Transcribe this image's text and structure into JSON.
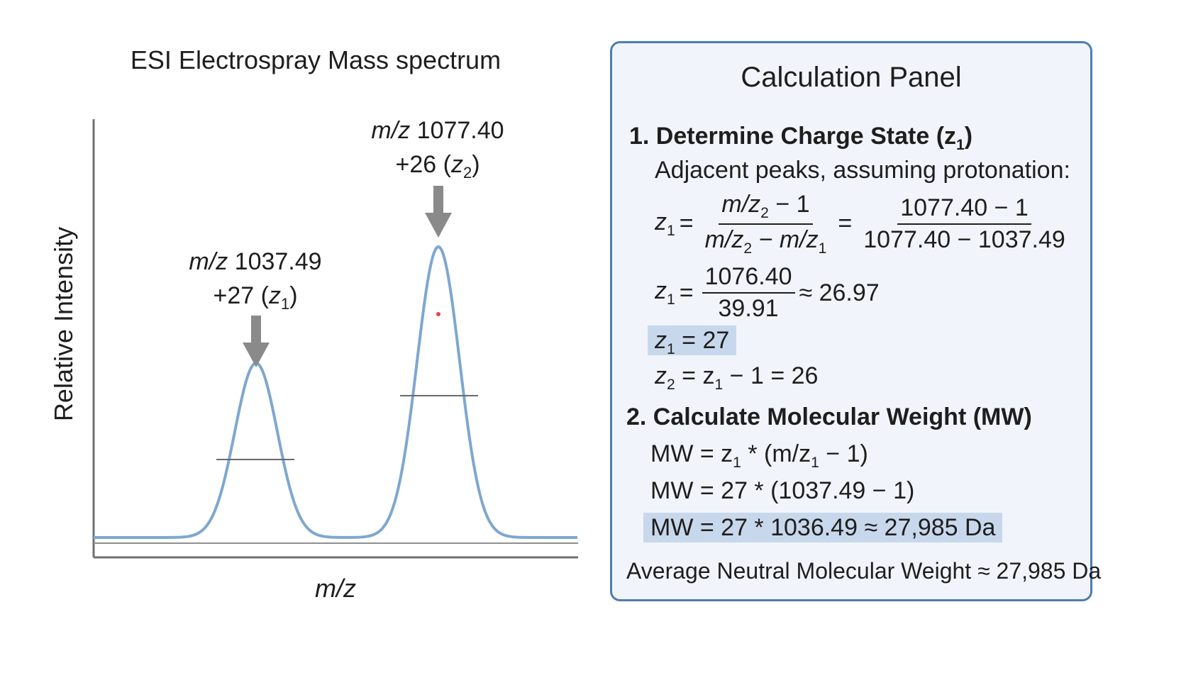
{
  "spectrum": {
    "title": "ESI Electrospray Mass spectrum",
    "ylabel": "Relative Intensity",
    "xlabel": "m/z",
    "peak1": {
      "mz": "1037.49",
      "mz_prefix": "m/z",
      "charge": "+27",
      "charge_sym": "z",
      "charge_sub": "1"
    },
    "peak2": {
      "mz": "1077.40",
      "mz_prefix": "m/z",
      "charge": "+26",
      "charge_sym": "z",
      "charge_sub": "2"
    },
    "colors": {
      "curve": "#7fa7cf",
      "arrow": "#8a8a8a",
      "axis": "#707070"
    }
  },
  "panel": {
    "title": "Calculation Panel",
    "step1": {
      "heading": "1. Determine Charge State (z",
      "heading_sub": "1",
      "heading_end": ")",
      "subtitle": "Adjacent peaks, assuming protonation:",
      "eq1_lhs": "z",
      "eq1_lhs_sub": "1",
      "eq1_num": "m/z",
      "eq1_num_sub": "2",
      "eq1_num_tail": " − 1",
      "eq1_den_a": "m/z",
      "eq1_den_a_sub": "2",
      "eq1_den_mid": " − m/z",
      "eq1_den_b_sub": "1",
      "eq1_num2": "1077.40 − 1",
      "eq1_den2": "1077.40 − 1037.49",
      "eq2_num": "1076.40",
      "eq2_den": "39.91",
      "eq2_approx": "≈ 26.97",
      "result1_tail": " = 27",
      "result2_mid": " = z",
      "result2_tail": " − 1 = 26"
    },
    "step2": {
      "heading": "2. Calculate Molecular Weight (MW)",
      "mw1_a": "MW = z",
      "mw1_b": " * (m/z",
      "mw1_c": " − 1)",
      "mw2": "MW = 27 * (1037.49 − 1)",
      "mw3": "MW = 27 * 1036.49 ≈ 27,985 Da"
    },
    "summary": "Average Neutral Molecular Weight ≈ 27,985 Da",
    "colors": {
      "border": "#4d7db0",
      "background": "#f1f5fb",
      "highlight": "#c8d8ec"
    }
  },
  "chart_data": {
    "type": "line",
    "title": "ESI Electrospray Mass spectrum",
    "xlabel": "m/z",
    "ylabel": "Relative Intensity",
    "grid": false,
    "peaks": [
      {
        "mz": 1037.49,
        "charge": 27,
        "label": "+27 (z1)",
        "relative_height": 0.6
      },
      {
        "mz": 1077.4,
        "charge": 26,
        "label": "+26 (z2)",
        "relative_height": 1.0
      }
    ]
  }
}
